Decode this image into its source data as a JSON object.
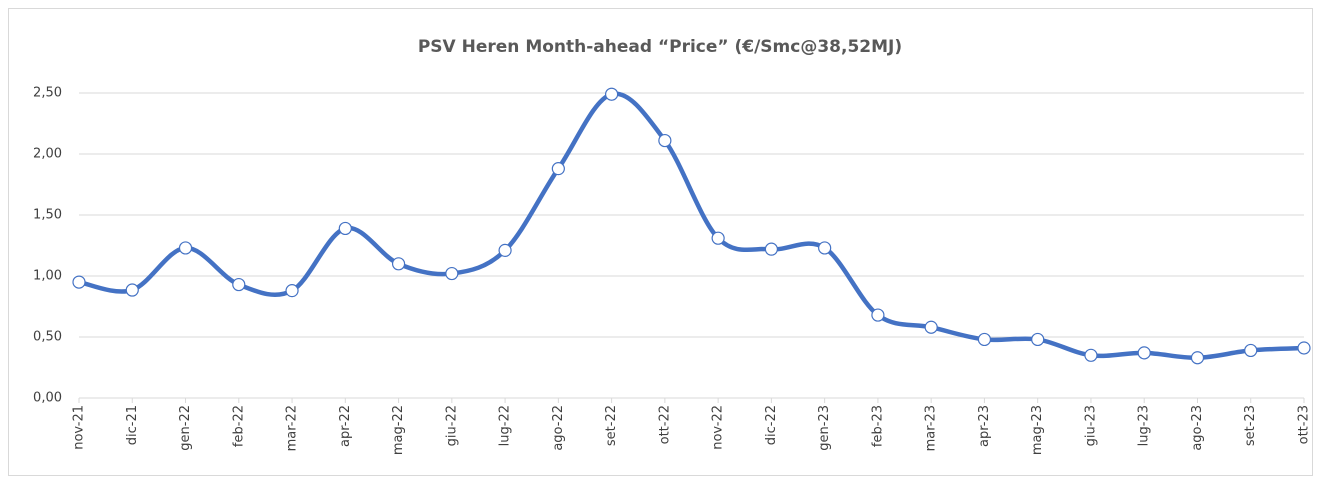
{
  "chart_data": {
    "type": "line",
    "title": "PSV Heren Month-ahead “Price” (€/Smc@38,52MJ)",
    "categories": [
      "nov-21",
      "dic-21",
      "gen-22",
      "feb-22",
      "mar-22",
      "apr-22",
      "mag-22",
      "giu-22",
      "lug-22",
      "ago-22",
      "set-22",
      "ott-22",
      "nov-22",
      "dic-22",
      "gen-23",
      "feb-23",
      "mar-23",
      "apr-23",
      "mag-23",
      "giu-23",
      "lug-23",
      "ago-23",
      "set-23",
      "ott-23"
    ],
    "values": [
      0.95,
      0.885,
      1.23,
      0.93,
      0.88,
      1.39,
      1.1,
      1.02,
      1.21,
      1.88,
      2.49,
      2.11,
      1.31,
      1.22,
      1.23,
      0.68,
      0.58,
      0.48,
      0.48,
      0.35,
      0.37,
      0.33,
      0.39,
      0.41
    ],
    "color": "#4472c4",
    "ylim": [
      0,
      2.5
    ],
    "yticks": [
      {
        "value": 0,
        "label": "0,00"
      },
      {
        "value": 0.5,
        "label": "0,50"
      },
      {
        "value": 1,
        "label": "1,00"
      },
      {
        "value": 1.5,
        "label": "1,50"
      },
      {
        "value": 2,
        "label": "2,00"
      },
      {
        "value": 2.5,
        "label": "2,50"
      }
    ],
    "grid": true,
    "smooth": true
  }
}
